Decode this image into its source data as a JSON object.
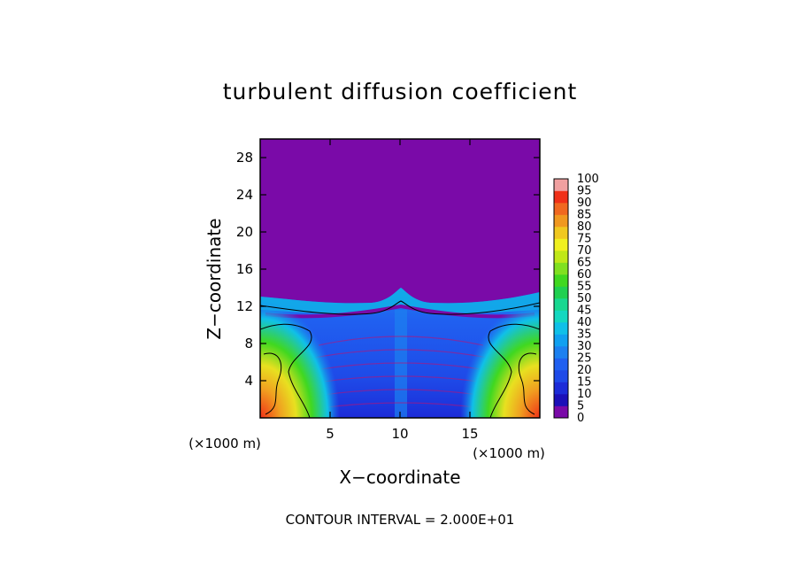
{
  "chart_data": {
    "type": "heatmap",
    "title": "turbulent diffusion coefficient",
    "xlabel": "X−coordinate",
    "ylabel": "Z−coordinate",
    "x_unit": "(×1000 m)",
    "z_unit": "(×1000 m)",
    "xlim": [
      0,
      20
    ],
    "ylim": [
      0,
      30
    ],
    "xticks": [
      5,
      10,
      15
    ],
    "yticks": [
      4,
      8,
      12,
      16,
      20,
      24,
      28
    ],
    "footer": "CONTOUR INTERVAL = 2.000E+01",
    "contour_interval": 20,
    "colorbar": {
      "levels": [
        0,
        5,
        10,
        15,
        20,
        25,
        30,
        35,
        40,
        45,
        50,
        55,
        60,
        65,
        70,
        75,
        80,
        85,
        90,
        95,
        100
      ],
      "colors": [
        "#7a0aa8",
        "#1c10b8",
        "#1c2cd8",
        "#1e4ae8",
        "#2060f0",
        "#1c80f0",
        "#10a0f0",
        "#10c0e8",
        "#14d8c0",
        "#18d890",
        "#20d050",
        "#40d820",
        "#80e020",
        "#c0e818",
        "#f0f020",
        "#f0c820",
        "#f09820",
        "#f06820",
        "#f03018",
        "#e02020",
        "#f0a0a0"
      ]
    },
    "field_description": [
      {
        "region": "upper domain z > 13",
        "value": 0
      },
      {
        "region": "interior x 3-17, z 0-12",
        "value_range": [
          10,
          25
        ]
      },
      {
        "region": "near tropopause z 12-13",
        "value_range": [
          20,
          40
        ]
      },
      {
        "region": "lateral edges x < 3 and x > 17, z 0-9",
        "value_range": [
          40,
          100
        ]
      },
      {
        "region": "bottom corners",
        "value": 100
      }
    ]
  }
}
